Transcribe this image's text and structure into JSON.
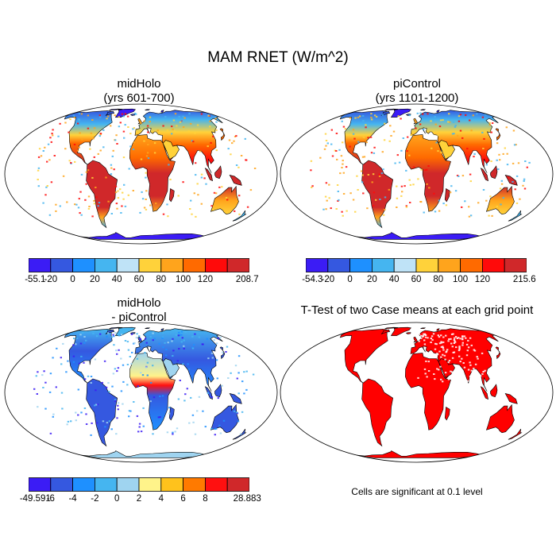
{
  "title": "MAM RNET (W/m^2)",
  "panels": [
    {
      "title_line1": "midHolo",
      "title_line2": "(yrs 601-700)"
    },
    {
      "title_line1": "piControl",
      "title_line2": "(yrs 1101-1200)"
    },
    {
      "title_line1": "midHolo",
      "title_line2": "- piControl"
    },
    {
      "title_line1": "T-Test of two Case means at each grid point",
      "title_line2": ""
    }
  ],
  "colorbars": [
    {
      "labels": [
        "-55.1",
        "-20",
        "0",
        "20",
        "40",
        "60",
        "80",
        "100",
        "120",
        "208.7"
      ],
      "colors": [
        "#3b1cf5",
        "#3558e0",
        "#1e90ff",
        "#45b5f0",
        "#bfe3f7",
        "#ffd23a",
        "#ffa41c",
        "#ff6a00",
        "#ff0a0a",
        "#d0282a"
      ]
    },
    {
      "labels": [
        "-54.3",
        "-20",
        "0",
        "20",
        "40",
        "60",
        "80",
        "100",
        "120",
        "215.6"
      ],
      "colors": [
        "#3b1cf5",
        "#3558e0",
        "#1e90ff",
        "#45b5f0",
        "#bfe3f7",
        "#ffd23a",
        "#ffa41c",
        "#ff6a00",
        "#ff0a0a",
        "#d0282a"
      ]
    },
    {
      "labels": [
        "-49.591",
        "-6",
        "-4",
        "-2",
        "0",
        "2",
        "4",
        "6",
        "8",
        "28.883"
      ],
      "colors": [
        "#3b1cf5",
        "#3558e0",
        "#1e90ff",
        "#45b5f0",
        "#9fd4f0",
        "#fff38a",
        "#ffc21c",
        "#ff7a00",
        "#ff1010",
        "#d0282a"
      ]
    }
  ],
  "note": "Cells are significant at 0.1 level",
  "colors": {
    "map_outline": "#000000",
    "significant": "#ff0000"
  }
}
